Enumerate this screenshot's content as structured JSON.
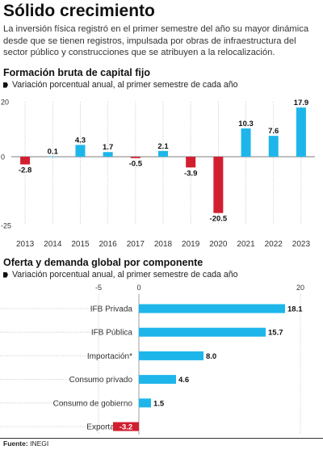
{
  "title": "Sólido crecimiento",
  "intro": "La inversión física registró en el primer semestre del año su mayor dinámica desde que se tienen registros, impulsada por obras de infraestructura del sector público y construcciones que se atribuyen a la relocalización.",
  "source_label": "Fuente:",
  "source_value": "INEGI",
  "colors": {
    "positive": "#1eb6ea",
    "negative": "#d21f30"
  },
  "chart_data": [
    {
      "type": "bar",
      "title": "Formación bruta de capital fijo",
      "subtitle": "Variación porcentual anual, al primer semestre de cada año",
      "categories": [
        "2013",
        "2014",
        "2015",
        "2016",
        "2017",
        "2018",
        "2019",
        "2020",
        "2021",
        "2022",
        "2023"
      ],
      "values": [
        -2.8,
        0.1,
        4.3,
        1.7,
        -0.5,
        2.1,
        -3.9,
        -20.5,
        10.3,
        7.6,
        17.9
      ],
      "value_labels": [
        "-2.8",
        "0.1",
        "4.3",
        "1.7",
        "-0.5",
        "2.1",
        "-3.9",
        "-20.5",
        "10.3",
        "7.6",
        "17.9"
      ],
      "yticks": [
        "20",
        "0",
        "-25"
      ],
      "ylim": [
        -25,
        20
      ],
      "grid": true,
      "orientation": "vertical"
    },
    {
      "type": "bar",
      "title": "Oferta y demanda global por componente",
      "subtitle": "Variación porcentual anual, al primer semestre de cada año",
      "categories": [
        "IFB Privada",
        "IFB Pública",
        "Importación*",
        "Consumo privado",
        "Consumo de gobierno",
        "Exportación*"
      ],
      "values": [
        18.1,
        15.7,
        8.0,
        4.6,
        1.5,
        -3.2
      ],
      "value_labels": [
        "18.1",
        "15.7",
        "8.0",
        "4.6",
        "1.5",
        "-3.2"
      ],
      "xticks": [
        "-5",
        "0",
        "20"
      ],
      "xlim": [
        -5,
        20
      ],
      "grid": true,
      "orientation": "horizontal"
    }
  ]
}
